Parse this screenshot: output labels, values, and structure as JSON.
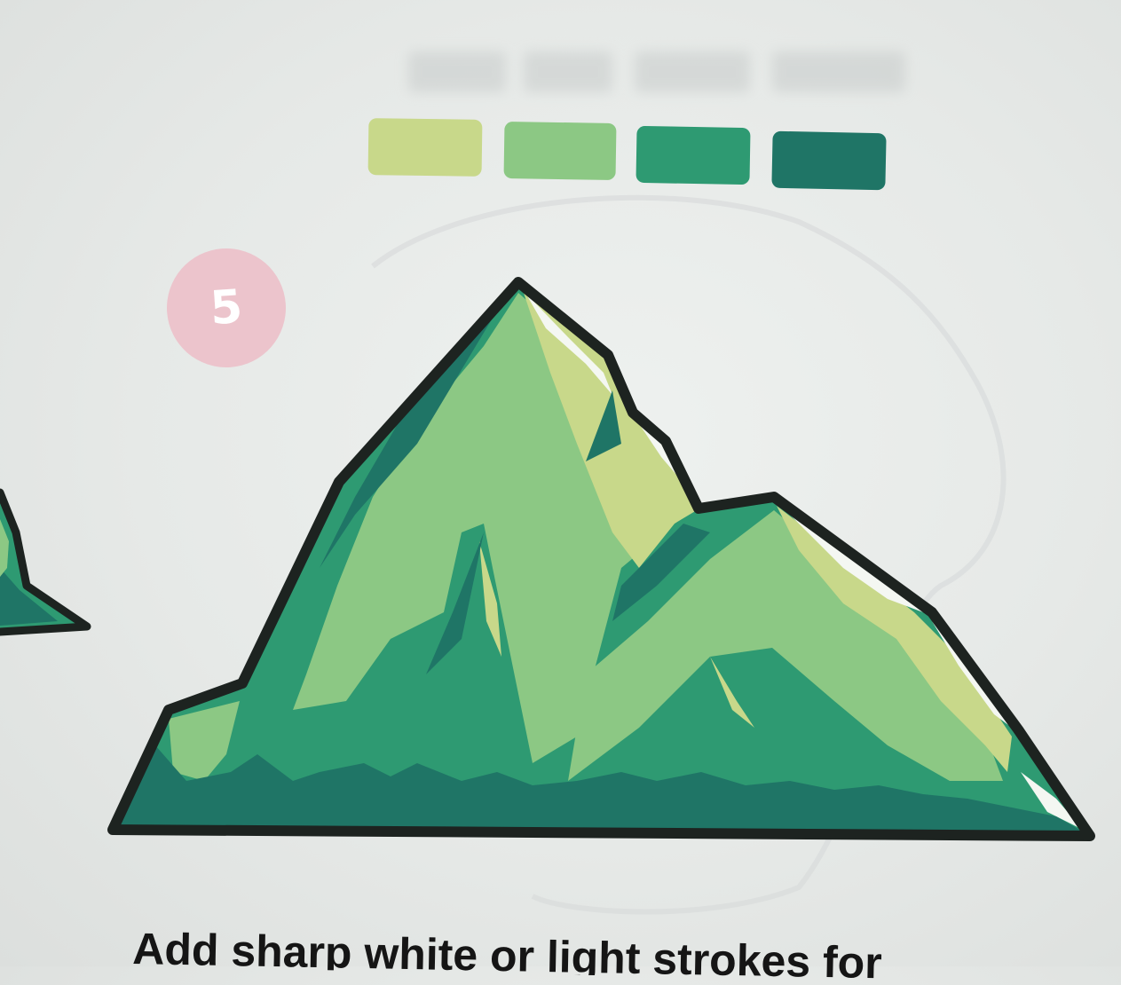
{
  "step": {
    "number": "5"
  },
  "palette": {
    "swatches": [
      "#c8d88a",
      "#8cc884",
      "#2e9a72",
      "#1f7566"
    ],
    "badge_color": "#ecc4cc",
    "outline_color": "#1d2320",
    "light_stroke_color": "#f4f7f2"
  },
  "instruction": {
    "text": "Add sharp white or light strokes for"
  }
}
